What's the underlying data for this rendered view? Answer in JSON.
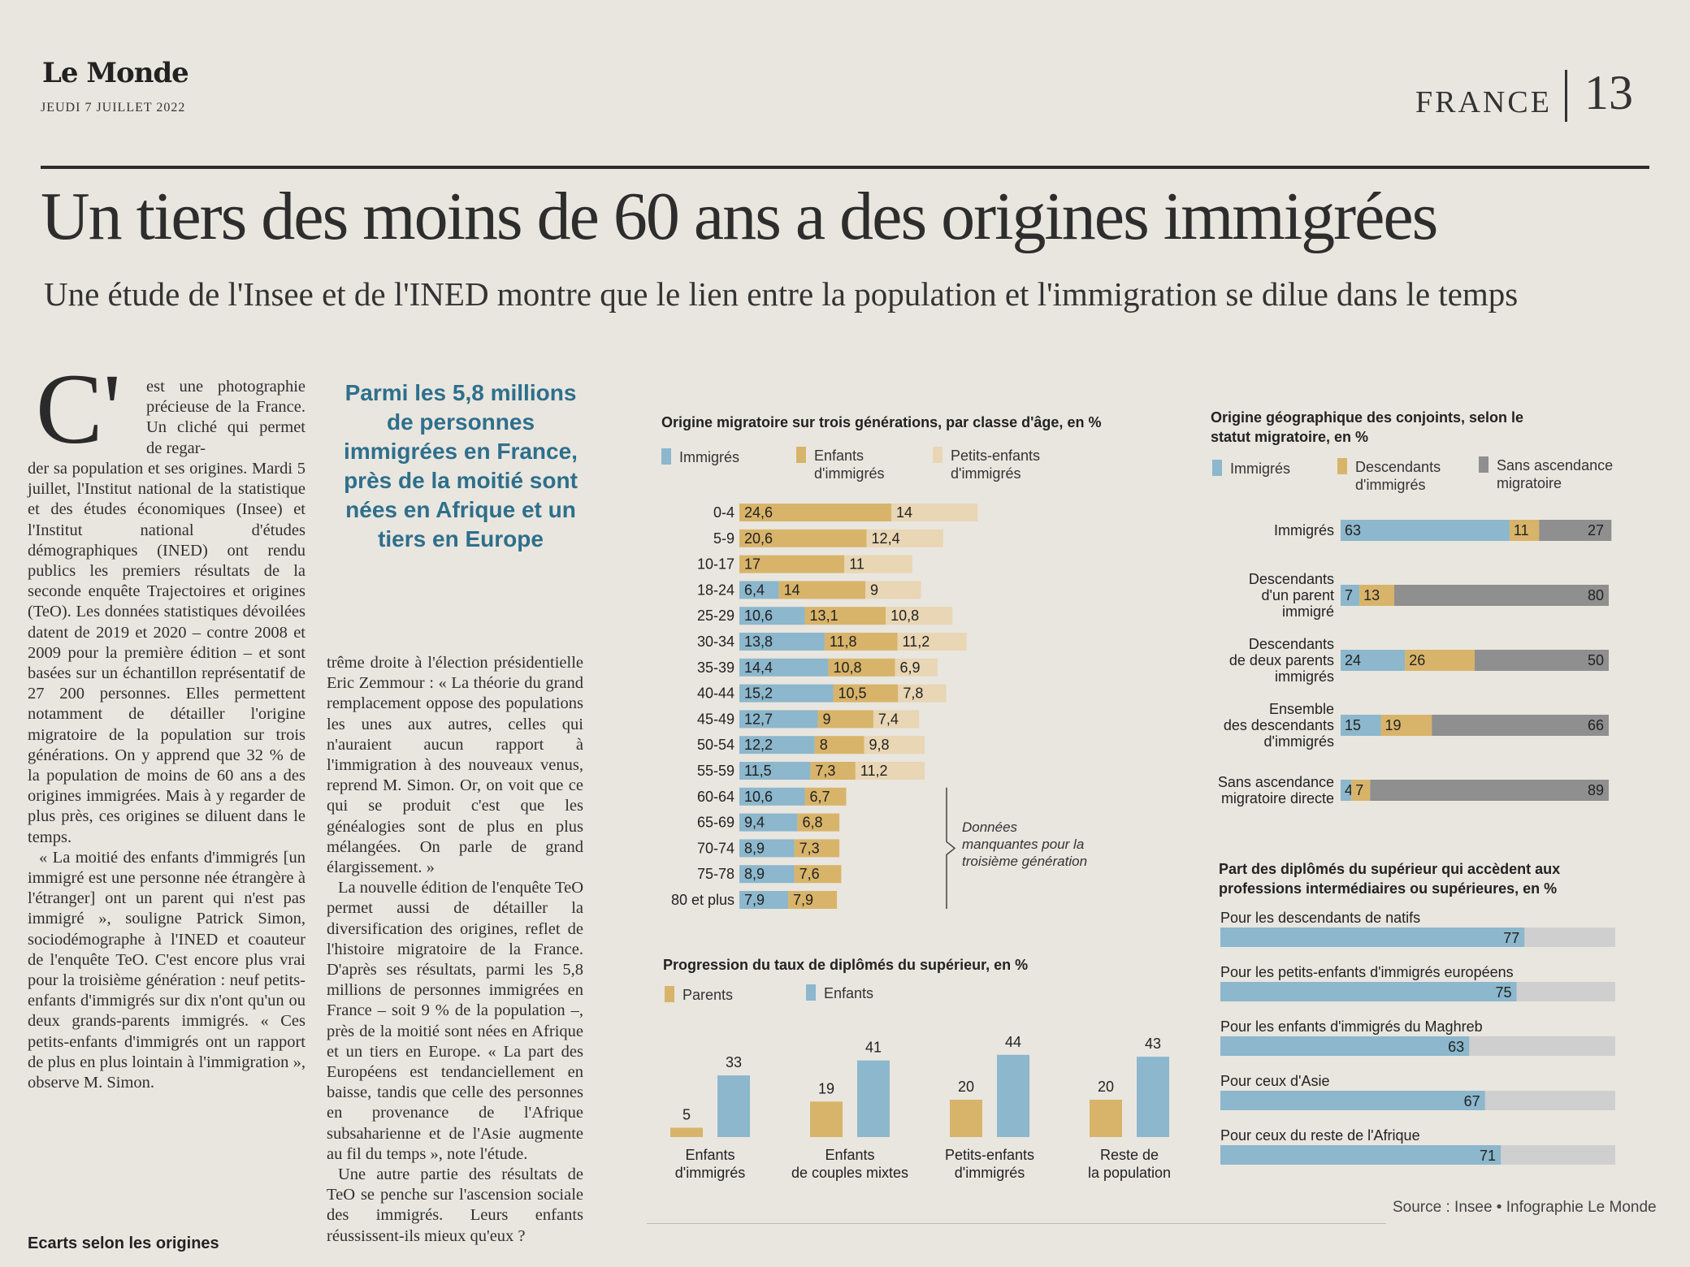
{
  "masthead": {
    "logo": "Le Monde",
    "date": "JEUDI 7 JUILLET 2022",
    "section": "FRANCE",
    "page_number": "13"
  },
  "article": {
    "headline": "Un tiers des moins de 60 ans a des origines immigrées",
    "subheadline": "Une étude de l'Insee et de l'INED montre que le lien entre la population et l'immigration se dilue dans le temps",
    "dropcap": "C'",
    "col1_lead": "est une photographie précieuse de la France. Un cliché qui permet de regar-",
    "col1_p1": "der sa population et ses origines. Mardi 5 juillet, l'Institut national de la statistique et des études économiques (Insee) et l'Institut national d'études démographiques (INED) ont rendu publics les premiers résultats de la seconde enquête Trajectoires et origines (TeO). Les données statistiques dévoilées datent de 2019 et 2020 – contre 2008 et 2009 pour la première édition – et sont basées sur un échantillon représentatif de 27 200 personnes. Elles permettent notamment de détailler l'origine migratoire de la population sur trois générations. On y apprend que 32 % de la population de moins de 60 ans a des origines immigrées. Mais à y regarder de plus près, ces origines se diluent dans le temps.",
    "col1_p2": "« La moitié des enfants d'immigrés [un immigré est une personne née étrangère à l'étranger] ont un parent qui n'est pas immigré », souligne Patrick Simon, sociodémographe à l'INED et coauteur de l'enquête TeO. C'est encore plus vrai pour la troisième génération : neuf petits-enfants d'immigrés sur dix n'ont qu'un ou deux grands-parents immigrés. « Ces petits-enfants d'immigrés ont un rapport de plus en plus lointain à l'immigration », observe M. Simon.",
    "col1_heading": "Ecarts selon les origines",
    "pullquote": "Parmi les 5,8 millions de personnes immigrées en France, près de la moitié sont nées en Afrique et un tiers en Europe",
    "col2_p1": "trême droite à l'élection présidentielle Eric Zemmour : « La théorie du grand remplacement oppose des populations les unes aux autres, celles qui n'auraient aucun rapport à l'immigration à des nouveaux venus, reprend M. Simon. Or, on voit que ce qui se produit c'est que les généalogies sont de plus en plus mélangées. On parle de grand élargissement. »",
    "col2_p2": "La nouvelle édition de l'enquête TeO permet aussi de détailler la diversification des origines, reflet de l'histoire migratoire de la France. D'après ses résultats, parmi les 5,8 millions de personnes immigrées en France – soit 9 % de la population –, près de la moitié sont nées en Afrique et un tiers en Europe. « La part des Européens est tendanciellement en baisse, tandis que celle des personnes en provenance de l'Afrique subsaharienne et de l'Asie augmente au fil du temps », note l'étude.",
    "col2_p3": "Une autre partie des résultats de TeO se penche sur l'ascension sociale des immigrés. Leurs enfants réussissent-ils mieux qu'eux ?"
  },
  "colors": {
    "blue": "#8cb7cc",
    "gold": "#d8b46a",
    "beige": "#e8d6b4",
    "grey": "#8f8f8f"
  },
  "source": "Source : Insee • Infographie Le Monde",
  "chart_data": [
    {
      "type": "bar",
      "orientation": "horizontal-stacked",
      "title": "Origine migratoire sur trois générations, par classe d'âge, en %",
      "categories": [
        "0-4",
        "5-9",
        "10-17",
        "18-24",
        "25-29",
        "30-34",
        "35-39",
        "40-44",
        "45-49",
        "50-54",
        "55-59",
        "60-64",
        "65-69",
        "70-74",
        "75-78",
        "80 et plus"
      ],
      "series": [
        {
          "name": "Immigrés",
          "color": "blue",
          "values": [
            null,
            null,
            null,
            6.4,
            10.6,
            13.8,
            14.4,
            15.2,
            12.7,
            12.2,
            11.5,
            10.6,
            9.4,
            8.9,
            8.9,
            7.9
          ],
          "labels": [
            "",
            "",
            "",
            "6,4",
            "10,6",
            "13,8",
            "14,4",
            "15,2",
            "12,7",
            "12,2",
            "11,5",
            "10,6",
            "9,4",
            "8,9",
            "8,9",
            "7,9"
          ]
        },
        {
          "name": "Enfants d'immigrés",
          "color": "gold",
          "values": [
            24.6,
            20.6,
            17,
            14,
            13.1,
            11.8,
            10.8,
            10.5,
            9,
            8,
            7.3,
            6.7,
            6.8,
            7.3,
            7.6,
            7.9
          ],
          "labels": [
            "24,6",
            "20,6",
            "17",
            "14",
            "13,1",
            "11,8",
            "10,8",
            "10,5",
            "9",
            "8",
            "7,3",
            "6,7",
            "6,8",
            "7,3",
            "7,6",
            "7,9"
          ]
        },
        {
          "name": "Petits-enfants d'immigrés",
          "color": "beige",
          "values": [
            14,
            12.4,
            11,
            9,
            10.8,
            11.2,
            6.9,
            7.8,
            7.4,
            9.8,
            11.2,
            null,
            null,
            null,
            null,
            null
          ],
          "labels": [
            "14",
            "12,4",
            "11",
            "9",
            "10,8",
            "11,2",
            "6,9",
            "7,8",
            "7,4",
            "9,8",
            "11,2",
            "",
            "",
            "",
            "",
            ""
          ]
        }
      ],
      "legend_labels": [
        "Immigrés",
        "Enfants\nd'immigrés",
        "Petits-enfants\nd'immigrés"
      ],
      "annotation": "Données manquantes pour la troisième génération"
    },
    {
      "type": "bar",
      "orientation": "horizontal-stacked-100",
      "title": "Origine géographique des conjoints, selon le statut migratoire, en %",
      "categories": [
        "Immigrés",
        "Descendants d'un parent immigré",
        "Descendants de deux parents immigrés",
        "Ensemble des descendants d'immigrés",
        "Sans ascendance migratoire directe"
      ],
      "series": [
        {
          "name": "Immigrés",
          "color": "blue",
          "values": [
            63,
            7,
            24,
            15,
            4
          ]
        },
        {
          "name": "Descendants d'immigrés",
          "color": "gold",
          "values": [
            11,
            13,
            26,
            19,
            7
          ]
        },
        {
          "name": "Sans ascendance migratoire",
          "color": "grey",
          "values": [
            27,
            80,
            50,
            66,
            89
          ]
        }
      ],
      "legend_labels": [
        "Immigrés",
        "Descendants\nd'immigrés",
        "Sans ascendance\nmigratoire"
      ],
      "category_lines": [
        [
          "Immigrés"
        ],
        [
          "Descendants",
          "d'un parent",
          "immigré"
        ],
        [
          "Descendants",
          "de deux parents",
          "immigrés"
        ],
        [
          "Ensemble",
          "des descendants",
          "d'immigrés"
        ],
        [
          "Sans ascendance",
          "migratoire directe"
        ]
      ]
    },
    {
      "type": "bar",
      "orientation": "vertical-grouped",
      "title": "Progression du taux de diplômés du supérieur, en %",
      "categories": [
        "Enfants d'immigrés",
        "Enfants de couples mixtes",
        "Petits-enfants d'immigrés",
        "Reste de la population"
      ],
      "category_lines": [
        [
          "Enfants",
          "d'immigrés"
        ],
        [
          "Enfants",
          "de couples mixtes"
        ],
        [
          "Petits-enfants",
          "d'immigrés"
        ],
        [
          "Reste de",
          "la population"
        ]
      ],
      "series": [
        {
          "name": "Parents",
          "color": "gold",
          "values": [
            5,
            19,
            20,
            20
          ]
        },
        {
          "name": "Enfants",
          "color": "blue",
          "values": [
            33,
            41,
            44,
            43
          ]
        }
      ]
    },
    {
      "type": "bar",
      "orientation": "horizontal",
      "title": "Part des diplômés du supérieur qui accèdent aux professions intermédiaires ou supérieures, en %",
      "categories": [
        "Pour les descendants de natifs",
        "Pour les petits-enfants d'immigrés européens",
        "Pour les enfants d'immigrés du Maghreb",
        "Pour ceux d'Asie",
        "Pour ceux du reste de l'Afrique"
      ],
      "values": [
        77,
        75,
        63,
        67,
        71
      ],
      "xlim": [
        0,
        100
      ]
    }
  ]
}
